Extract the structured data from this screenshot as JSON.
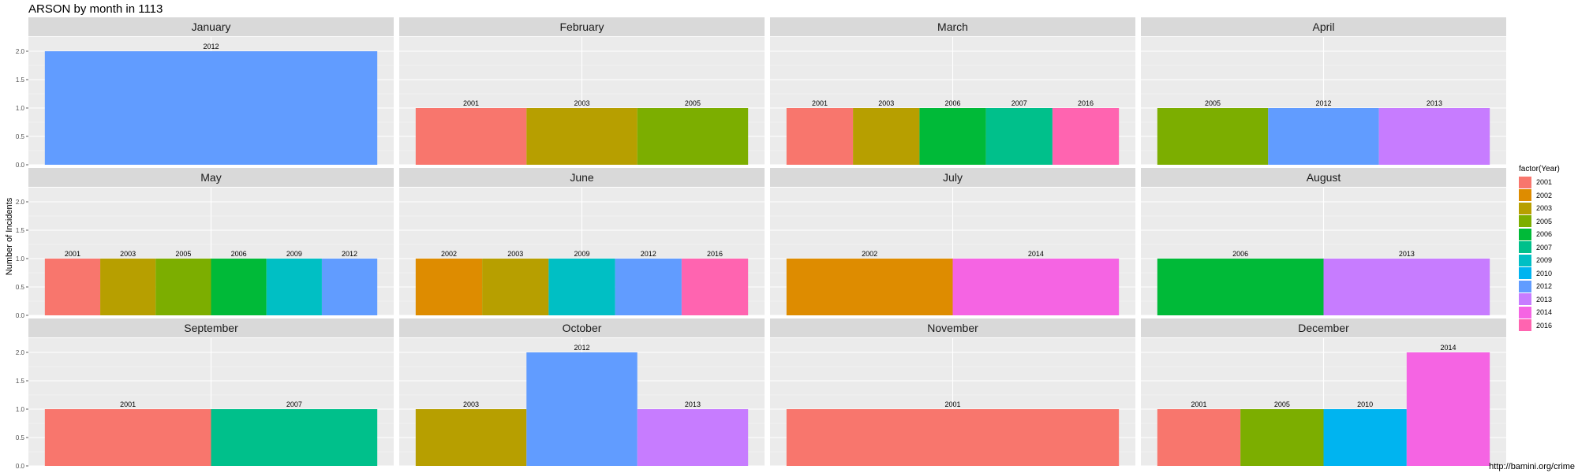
{
  "chart_data": {
    "type": "bar",
    "title": "ARSON by month in 1113",
    "ylabel": "Number of Incidents",
    "xlabel": "",
    "ylim": [
      0,
      2.25
    ],
    "yticks": [
      "0.0",
      "0.5",
      "1.0",
      "1.5",
      "2.0"
    ],
    "grid": true,
    "legend": {
      "title": "factor(Year)",
      "position": "right"
    },
    "caption": "http://bamini.org/crime",
    "years": [
      "2001",
      "2002",
      "2003",
      "2005",
      "2006",
      "2007",
      "2009",
      "2010",
      "2012",
      "2013",
      "2014",
      "2016"
    ],
    "colors": {
      "2001": "#F8766D",
      "2002": "#DE8C00",
      "2003": "#B79F00",
      "2005": "#7CAE00",
      "2006": "#00BA38",
      "2007": "#00C08B",
      "2009": "#00BFC4",
      "2010": "#00B4F0",
      "2012": "#619CFF",
      "2013": "#C77CFF",
      "2014": "#F564E3",
      "2016": "#FF64B0"
    },
    "panels": [
      {
        "month": "January",
        "bars": [
          {
            "year": "2012",
            "value": 2
          }
        ]
      },
      {
        "month": "February",
        "bars": [
          {
            "year": "2001",
            "value": 1
          },
          {
            "year": "2003",
            "value": 1
          },
          {
            "year": "2005",
            "value": 1
          }
        ]
      },
      {
        "month": "March",
        "bars": [
          {
            "year": "2001",
            "value": 1
          },
          {
            "year": "2003",
            "value": 1
          },
          {
            "year": "2006",
            "value": 1
          },
          {
            "year": "2007",
            "value": 1
          },
          {
            "year": "2016",
            "value": 1
          }
        ]
      },
      {
        "month": "April",
        "bars": [
          {
            "year": "2005",
            "value": 1
          },
          {
            "year": "2012",
            "value": 1
          },
          {
            "year": "2013",
            "value": 1
          }
        ]
      },
      {
        "month": "May",
        "bars": [
          {
            "year": "2001",
            "value": 1
          },
          {
            "year": "2003",
            "value": 1
          },
          {
            "year": "2005",
            "value": 1
          },
          {
            "year": "2006",
            "value": 1
          },
          {
            "year": "2009",
            "value": 1
          },
          {
            "year": "2012",
            "value": 1
          }
        ]
      },
      {
        "month": "June",
        "bars": [
          {
            "year": "2002",
            "value": 1
          },
          {
            "year": "2003",
            "value": 1
          },
          {
            "year": "2009",
            "value": 1
          },
          {
            "year": "2012",
            "value": 1
          },
          {
            "year": "2016",
            "value": 1
          }
        ]
      },
      {
        "month": "July",
        "bars": [
          {
            "year": "2002",
            "value": 1
          },
          {
            "year": "2014",
            "value": 1
          }
        ]
      },
      {
        "month": "August",
        "bars": [
          {
            "year": "2006",
            "value": 1
          },
          {
            "year": "2013",
            "value": 1
          }
        ]
      },
      {
        "month": "September",
        "bars": [
          {
            "year": "2001",
            "value": 1
          },
          {
            "year": "2007",
            "value": 1
          }
        ]
      },
      {
        "month": "October",
        "bars": [
          {
            "year": "2003",
            "value": 1
          },
          {
            "year": "2012",
            "value": 2
          },
          {
            "year": "2013",
            "value": 1
          }
        ]
      },
      {
        "month": "November",
        "bars": [
          {
            "year": "2001",
            "value": 1
          }
        ]
      },
      {
        "month": "December",
        "bars": [
          {
            "year": "2001",
            "value": 1
          },
          {
            "year": "2005",
            "value": 1
          },
          {
            "year": "2010",
            "value": 1
          },
          {
            "year": "2014",
            "value": 2
          }
        ]
      }
    ]
  }
}
